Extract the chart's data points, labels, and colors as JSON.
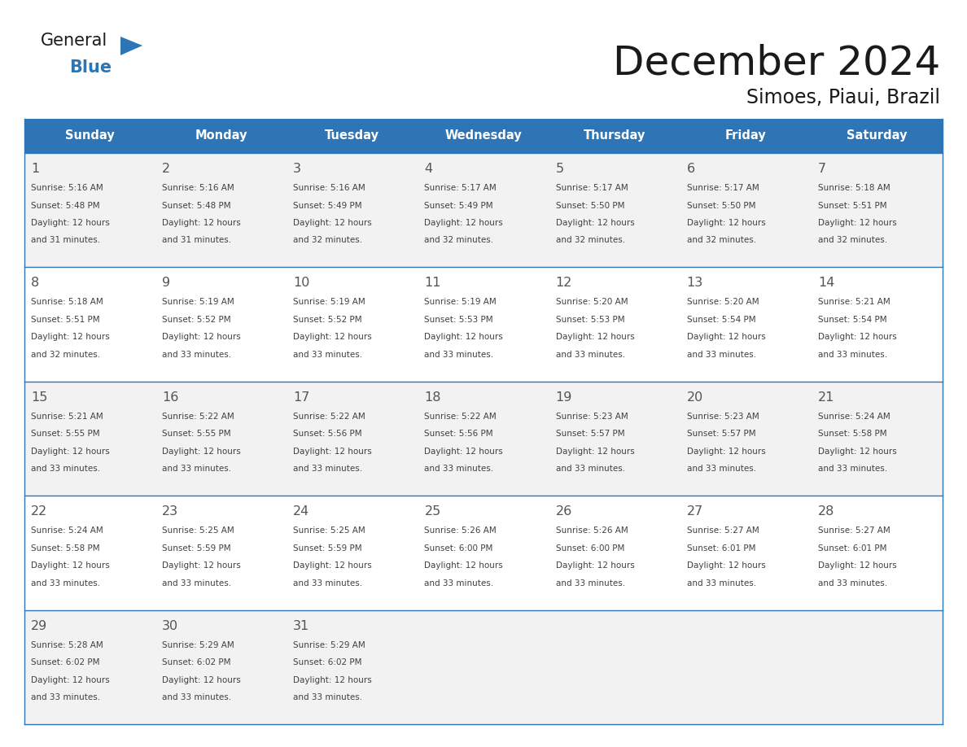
{
  "title": "December 2024",
  "subtitle": "Simoes, Piaui, Brazil",
  "days_of_week": [
    "Sunday",
    "Monday",
    "Tuesday",
    "Wednesday",
    "Thursday",
    "Friday",
    "Saturday"
  ],
  "header_bg": "#2E75B6",
  "header_text_color": "#FFFFFF",
  "row_bg_odd": "#F2F2F2",
  "row_bg_even": "#FFFFFF",
  "border_color": "#2E75B6",
  "cal_text_color": "#404040",
  "date_text_color": "#555555",
  "logo_general_color": "#1a1a1a",
  "logo_blue_color": "#2E75B6",
  "logo_triangle_color": "#2E75B6",
  "title_color": "#1a1a1a",
  "weeks": [
    {
      "days": [
        {
          "date": "1",
          "sunrise": "5:16 AM",
          "sunset": "5:48 PM",
          "daylight": "12 hours and 31 minutes."
        },
        {
          "date": "2",
          "sunrise": "5:16 AM",
          "sunset": "5:48 PM",
          "daylight": "12 hours and 31 minutes."
        },
        {
          "date": "3",
          "sunrise": "5:16 AM",
          "sunset": "5:49 PM",
          "daylight": "12 hours and 32 minutes."
        },
        {
          "date": "4",
          "sunrise": "5:17 AM",
          "sunset": "5:49 PM",
          "daylight": "12 hours and 32 minutes."
        },
        {
          "date": "5",
          "sunrise": "5:17 AM",
          "sunset": "5:50 PM",
          "daylight": "12 hours and 32 minutes."
        },
        {
          "date": "6",
          "sunrise": "5:17 AM",
          "sunset": "5:50 PM",
          "daylight": "12 hours and 32 minutes."
        },
        {
          "date": "7",
          "sunrise": "5:18 AM",
          "sunset": "5:51 PM",
          "daylight": "12 hours and 32 minutes."
        }
      ]
    },
    {
      "days": [
        {
          "date": "8",
          "sunrise": "5:18 AM",
          "sunset": "5:51 PM",
          "daylight": "12 hours and 32 minutes."
        },
        {
          "date": "9",
          "sunrise": "5:19 AM",
          "sunset": "5:52 PM",
          "daylight": "12 hours and 33 minutes."
        },
        {
          "date": "10",
          "sunrise": "5:19 AM",
          "sunset": "5:52 PM",
          "daylight": "12 hours and 33 minutes."
        },
        {
          "date": "11",
          "sunrise": "5:19 AM",
          "sunset": "5:53 PM",
          "daylight": "12 hours and 33 minutes."
        },
        {
          "date": "12",
          "sunrise": "5:20 AM",
          "sunset": "5:53 PM",
          "daylight": "12 hours and 33 minutes."
        },
        {
          "date": "13",
          "sunrise": "5:20 AM",
          "sunset": "5:54 PM",
          "daylight": "12 hours and 33 minutes."
        },
        {
          "date": "14",
          "sunrise": "5:21 AM",
          "sunset": "5:54 PM",
          "daylight": "12 hours and 33 minutes."
        }
      ]
    },
    {
      "days": [
        {
          "date": "15",
          "sunrise": "5:21 AM",
          "sunset": "5:55 PM",
          "daylight": "12 hours and 33 minutes."
        },
        {
          "date": "16",
          "sunrise": "5:22 AM",
          "sunset": "5:55 PM",
          "daylight": "12 hours and 33 minutes."
        },
        {
          "date": "17",
          "sunrise": "5:22 AM",
          "sunset": "5:56 PM",
          "daylight": "12 hours and 33 minutes."
        },
        {
          "date": "18",
          "sunrise": "5:22 AM",
          "sunset": "5:56 PM",
          "daylight": "12 hours and 33 minutes."
        },
        {
          "date": "19",
          "sunrise": "5:23 AM",
          "sunset": "5:57 PM",
          "daylight": "12 hours and 33 minutes."
        },
        {
          "date": "20",
          "sunrise": "5:23 AM",
          "sunset": "5:57 PM",
          "daylight": "12 hours and 33 minutes."
        },
        {
          "date": "21",
          "sunrise": "5:24 AM",
          "sunset": "5:58 PM",
          "daylight": "12 hours and 33 minutes."
        }
      ]
    },
    {
      "days": [
        {
          "date": "22",
          "sunrise": "5:24 AM",
          "sunset": "5:58 PM",
          "daylight": "12 hours and 33 minutes."
        },
        {
          "date": "23",
          "sunrise": "5:25 AM",
          "sunset": "5:59 PM",
          "daylight": "12 hours and 33 minutes."
        },
        {
          "date": "24",
          "sunrise": "5:25 AM",
          "sunset": "5:59 PM",
          "daylight": "12 hours and 33 minutes."
        },
        {
          "date": "25",
          "sunrise": "5:26 AM",
          "sunset": "6:00 PM",
          "daylight": "12 hours and 33 minutes."
        },
        {
          "date": "26",
          "sunrise": "5:26 AM",
          "sunset": "6:00 PM",
          "daylight": "12 hours and 33 minutes."
        },
        {
          "date": "27",
          "sunrise": "5:27 AM",
          "sunset": "6:01 PM",
          "daylight": "12 hours and 33 minutes."
        },
        {
          "date": "28",
          "sunrise": "5:27 AM",
          "sunset": "6:01 PM",
          "daylight": "12 hours and 33 minutes."
        }
      ]
    },
    {
      "days": [
        {
          "date": "29",
          "sunrise": "5:28 AM",
          "sunset": "6:02 PM",
          "daylight": "12 hours and 33 minutes."
        },
        {
          "date": "30",
          "sunrise": "5:29 AM",
          "sunset": "6:02 PM",
          "daylight": "12 hours and 33 minutes."
        },
        {
          "date": "31",
          "sunrise": "5:29 AM",
          "sunset": "6:02 PM",
          "daylight": "12 hours and 33 minutes."
        },
        {
          "date": "",
          "sunrise": "",
          "sunset": "",
          "daylight": ""
        },
        {
          "date": "",
          "sunrise": "",
          "sunset": "",
          "daylight": ""
        },
        {
          "date": "",
          "sunrise": "",
          "sunset": "",
          "daylight": ""
        },
        {
          "date": "",
          "sunrise": "",
          "sunset": "",
          "daylight": ""
        }
      ]
    }
  ]
}
